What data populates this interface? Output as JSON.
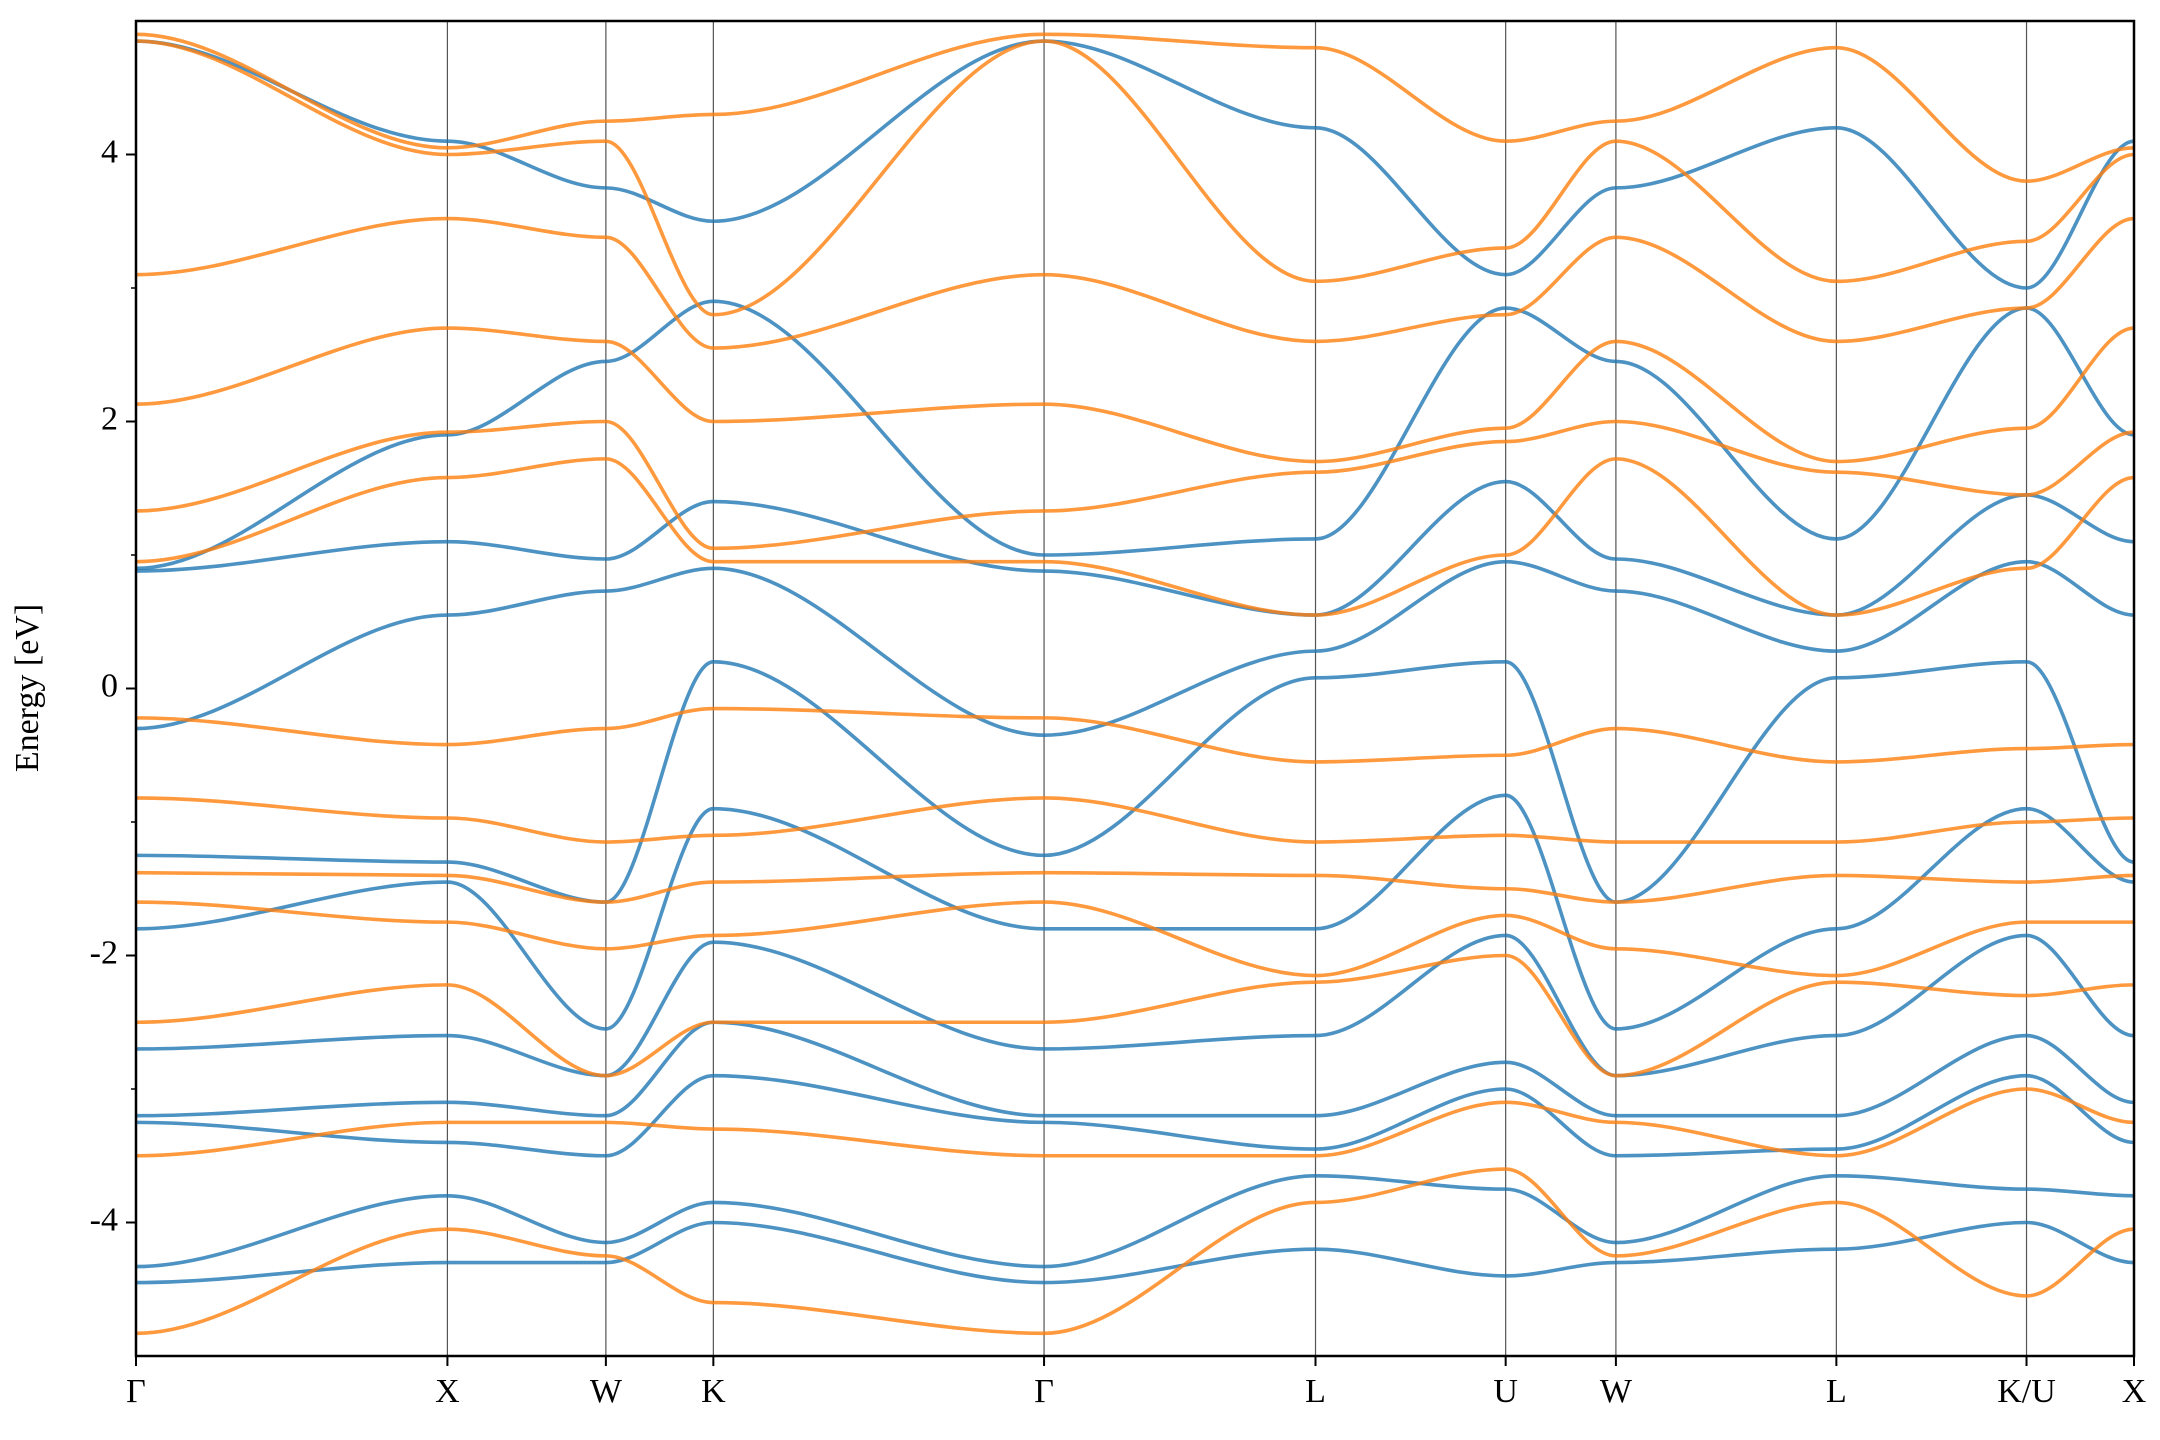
{
  "chart_data": {
    "type": "line",
    "ylabel": "Energy [eV]",
    "x": [
      0,
      2.26,
      3.41,
      4.19,
      6.59,
      8.56,
      9.94,
      10.74,
      12.34,
      13.72,
      14.5
    ],
    "xlim": [
      0,
      14.5
    ],
    "xticks": [
      {
        "value": 0,
        "label": "Γ"
      },
      {
        "value": 2.26,
        "label": "X"
      },
      {
        "value": 3.41,
        "label": "W"
      },
      {
        "value": 4.19,
        "label": "K"
      },
      {
        "value": 6.59,
        "label": "Γ"
      },
      {
        "value": 8.56,
        "label": "L"
      },
      {
        "value": 9.94,
        "label": "U"
      },
      {
        "value": 10.74,
        "label": "W"
      },
      {
        "value": 12.34,
        "label": "L"
      },
      {
        "value": 13.72,
        "label": "K/U"
      },
      {
        "value": 14.5,
        "label": "X"
      }
    ],
    "xgrid": true,
    "ylim": [
      -5,
      5
    ],
    "yticks": [
      -4,
      -2,
      0,
      2,
      4
    ],
    "yminorticks": [
      -3,
      -1,
      1,
      3
    ],
    "series": [
      {
        "color": "#1f77b4",
        "values": [
          4.85,
          4.1,
          3.75,
          3.5,
          4.85,
          4.2,
          3.1,
          3.75,
          4.2,
          3.0,
          4.1
        ]
      },
      {
        "color": "#1f77b4",
        "values": [
          0.9,
          1.9,
          2.45,
          2.9,
          1.0,
          1.12,
          2.85,
          2.45,
          1.12,
          2.85,
          1.9
        ]
      },
      {
        "color": "#1f77b4",
        "values": [
          0.88,
          1.1,
          0.97,
          1.4,
          0.88,
          0.55,
          1.55,
          0.97,
          0.55,
          1.45,
          1.1
        ]
      },
      {
        "color": "#1f77b4",
        "values": [
          -0.3,
          0.55,
          0.73,
          0.9,
          -0.35,
          0.28,
          0.95,
          0.73,
          0.28,
          0.95,
          0.55
        ]
      },
      {
        "color": "#1f77b4",
        "values": [
          -1.25,
          -1.3,
          -1.6,
          0.2,
          -1.25,
          0.08,
          0.2,
          -1.6,
          0.08,
          0.2,
          -1.3
        ]
      },
      {
        "color": "#1f77b4",
        "values": [
          -1.8,
          -1.45,
          -2.55,
          -0.9,
          -1.8,
          -1.8,
          -0.8,
          -2.55,
          -1.8,
          -0.9,
          -1.45
        ]
      },
      {
        "color": "#1f77b4",
        "values": [
          -2.7,
          -2.6,
          -2.9,
          -1.9,
          -2.7,
          -2.6,
          -1.85,
          -2.9,
          -2.6,
          -1.85,
          -2.6
        ]
      },
      {
        "color": "#1f77b4",
        "values": [
          -3.2,
          -3.1,
          -3.2,
          -2.5,
          -3.2,
          -3.2,
          -2.8,
          -3.2,
          -3.2,
          -2.6,
          -3.1
        ]
      },
      {
        "color": "#1f77b4",
        "values": [
          -3.25,
          -3.4,
          -3.5,
          -2.9,
          -3.25,
          -3.45,
          -3.0,
          -3.5,
          -3.45,
          -2.9,
          -3.4
        ]
      },
      {
        "color": "#1f77b4",
        "values": [
          -4.33,
          -3.8,
          -4.15,
          -3.85,
          -4.33,
          -3.65,
          -3.75,
          -4.15,
          -3.65,
          -3.75,
          -3.8
        ]
      },
      {
        "color": "#1f77b4",
        "values": [
          -4.45,
          -4.3,
          -4.3,
          -4.0,
          -4.45,
          -4.2,
          -4.4,
          -4.3,
          -4.2,
          -4.0,
          -4.3
        ]
      },
      {
        "color": "#ff7f0e",
        "values": [
          4.9,
          4.05,
          4.25,
          4.3,
          4.9,
          4.8,
          4.1,
          4.25,
          4.8,
          3.8,
          4.05
        ]
      },
      {
        "color": "#ff7f0e",
        "values": [
          4.85,
          4.0,
          4.1,
          2.8,
          4.85,
          3.05,
          3.3,
          4.1,
          3.05,
          3.35,
          4.0
        ]
      },
      {
        "color": "#ff7f0e",
        "values": [
          3.1,
          3.52,
          3.38,
          2.55,
          3.1,
          2.6,
          2.8,
          3.38,
          2.6,
          2.85,
          3.52
        ]
      },
      {
        "color": "#ff7f0e",
        "values": [
          2.13,
          2.7,
          2.6,
          2.0,
          2.13,
          1.7,
          1.95,
          2.6,
          1.7,
          1.95,
          2.7
        ]
      },
      {
        "color": "#ff7f0e",
        "values": [
          1.33,
          1.92,
          2.0,
          1.05,
          1.33,
          1.62,
          1.85,
          2.0,
          1.62,
          1.45,
          1.92
        ]
      },
      {
        "color": "#ff7f0e",
        "values": [
          0.95,
          1.58,
          1.72,
          0.95,
          0.95,
          0.55,
          1.0,
          1.72,
          0.55,
          0.9,
          1.58
        ]
      },
      {
        "color": "#ff7f0e",
        "values": [
          -0.22,
          -0.42,
          -0.3,
          -0.15,
          -0.22,
          -0.55,
          -0.5,
          -0.3,
          -0.55,
          -0.45,
          -0.42
        ]
      },
      {
        "color": "#ff7f0e",
        "values": [
          -0.82,
          -0.97,
          -1.15,
          -1.1,
          -0.82,
          -1.15,
          -1.1,
          -1.15,
          -1.15,
          -1.0,
          -0.97
        ]
      },
      {
        "color": "#ff7f0e",
        "values": [
          -1.38,
          -1.4,
          -1.6,
          -1.45,
          -1.38,
          -1.4,
          -1.5,
          -1.6,
          -1.4,
          -1.45,
          -1.4
        ]
      },
      {
        "color": "#ff7f0e",
        "values": [
          -1.6,
          -1.75,
          -1.95,
          -1.85,
          -1.6,
          -2.15,
          -1.7,
          -1.95,
          -2.15,
          -1.75,
          -1.75
        ]
      },
      {
        "color": "#ff7f0e",
        "values": [
          -2.5,
          -2.22,
          -2.9,
          -2.5,
          -2.5,
          -2.2,
          -2.0,
          -2.9,
          -2.2,
          -2.3,
          -2.22
        ]
      },
      {
        "color": "#ff7f0e",
        "values": [
          -3.5,
          -3.25,
          -3.25,
          -3.3,
          -3.5,
          -3.5,
          -3.1,
          -3.25,
          -3.5,
          -3.0,
          -3.25
        ]
      },
      {
        "color": "#ff7f0e",
        "values": [
          -4.83,
          -4.05,
          -4.25,
          -4.6,
          -4.83,
          -3.85,
          -3.6,
          -4.25,
          -3.85,
          -4.55,
          -4.05
        ]
      }
    ]
  }
}
